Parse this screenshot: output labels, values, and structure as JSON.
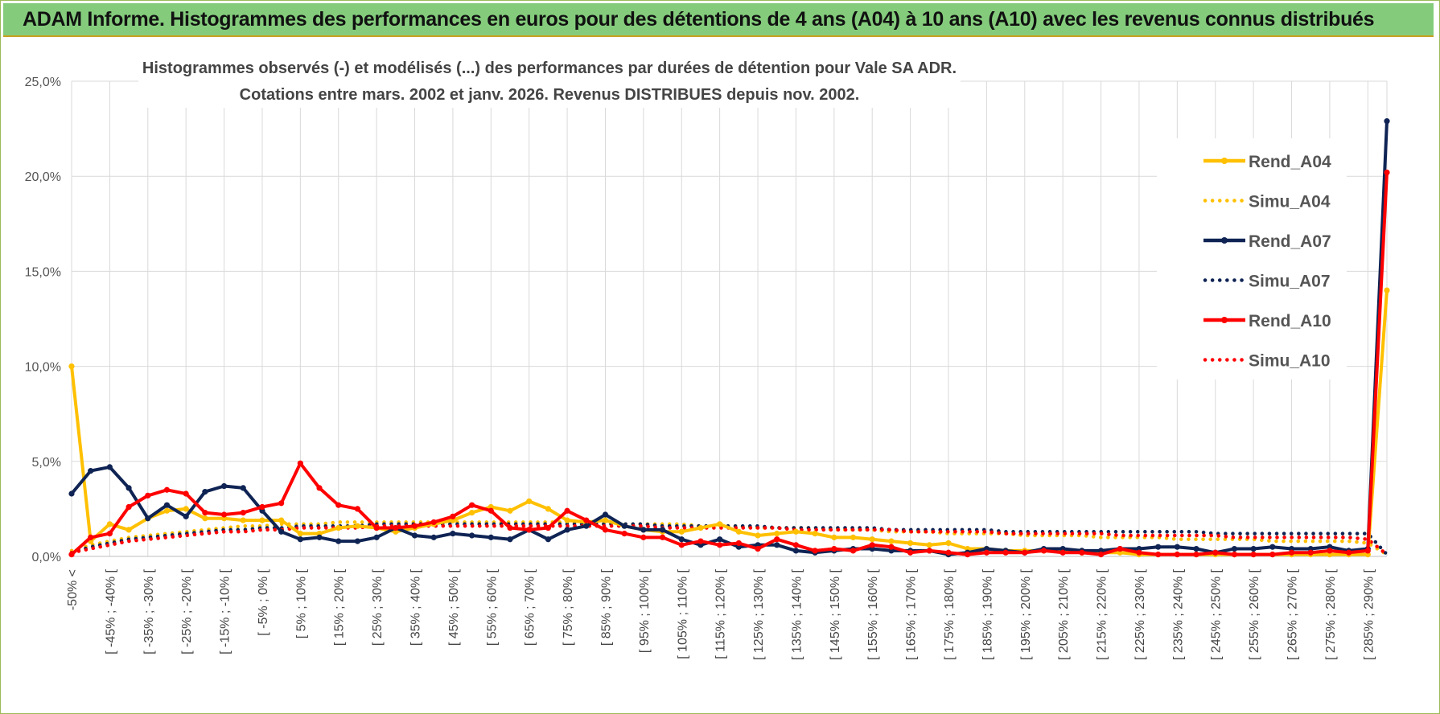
{
  "banner": {
    "title": "ADAM Informe. Histogrammes des performances en euros pour des détentions de 4 ans (A04) à 10 ans (A10) avec les revenus connus distribués"
  },
  "colors": {
    "A04": "#ffc000",
    "A07": "#0f2454",
    "A10": "#ff0000",
    "banner": "#84cc7c",
    "grid": "#d9d9d9"
  },
  "chart_data": {
    "type": "line",
    "title_lines": [
      "Histogrammes observés (-) et modélisés (...) des performances par durées de détention pour Vale SA ADR.",
      "Cotations entre mars. 2002 et janv. 2026.  Revenus DISTRIBUES depuis nov. 2002."
    ],
    "ylim": [
      0,
      25
    ],
    "yticks": [
      {
        "v": 0,
        "label": "0,0%"
      },
      {
        "v": 5,
        "label": "5,0%"
      },
      {
        "v": 10,
        "label": "10,0%"
      },
      {
        "v": 15,
        "label": "15,0%"
      },
      {
        "v": 20,
        "label": "20,0%"
      },
      {
        "v": 25,
        "label": "25,0%"
      }
    ],
    "x_count": 70,
    "x_tick_labels": [
      {
        "i": 0,
        "label": "-50% <"
      },
      {
        "i": 2,
        "label": "[ -45% ; -40% ["
      },
      {
        "i": 4,
        "label": "[ -35% ; -30% ["
      },
      {
        "i": 6,
        "label": "[ -25% ; -20% ["
      },
      {
        "i": 8,
        "label": "[ -15% ; -10% ["
      },
      {
        "i": 10,
        "label": "[ -5% ; 0% ["
      },
      {
        "i": 12,
        "label": "[ 5% ; 10% ["
      },
      {
        "i": 14,
        "label": "[ 15% ; 20% ["
      },
      {
        "i": 16,
        "label": "[ 25% ; 30% ["
      },
      {
        "i": 18,
        "label": "[ 35% ; 40% ["
      },
      {
        "i": 20,
        "label": "[ 45% ; 50% ["
      },
      {
        "i": 22,
        "label": "[ 55% ; 60% ["
      },
      {
        "i": 24,
        "label": "[ 65% ; 70% ["
      },
      {
        "i": 26,
        "label": "[ 75% ; 80% ["
      },
      {
        "i": 28,
        "label": "[ 85% ; 90% ["
      },
      {
        "i": 30,
        "label": "[ 95% ; 100% ["
      },
      {
        "i": 32,
        "label": "[ 105% ; 110% ["
      },
      {
        "i": 34,
        "label": "[ 115% ; 120% ["
      },
      {
        "i": 36,
        "label": "[ 125% ; 130% ["
      },
      {
        "i": 38,
        "label": "[ 135% ; 140% ["
      },
      {
        "i": 40,
        "label": "[ 145% ; 150% ["
      },
      {
        "i": 42,
        "label": "[ 155% ; 160% ["
      },
      {
        "i": 44,
        "label": "[ 165% ; 170% ["
      },
      {
        "i": 46,
        "label": "[ 175% ; 180% ["
      },
      {
        "i": 48,
        "label": "[ 185% ; 190% ["
      },
      {
        "i": 50,
        "label": "[ 195% ; 200% ["
      },
      {
        "i": 52,
        "label": "[ 205% ; 210% ["
      },
      {
        "i": 54,
        "label": "[ 215% ; 220% ["
      },
      {
        "i": 56,
        "label": "[ 225% ; 230% ["
      },
      {
        "i": 58,
        "label": "[ 235% ; 240% ["
      },
      {
        "i": 60,
        "label": "[ 245% ; 250% ["
      },
      {
        "i": 62,
        "label": "[ 255% ; 260% ["
      },
      {
        "i": 64,
        "label": "[ 265% ; 270% ["
      },
      {
        "i": 66,
        "label": "[ 275% ; 280% ["
      },
      {
        "i": 68,
        "label": "[ 285% ; 290% ["
      }
    ],
    "legend_position": "right",
    "series": [
      {
        "name": "Rend_A04",
        "style": "solid",
        "color": "#ffc000",
        "values": [
          10.0,
          0.8,
          1.7,
          1.4,
          2.0,
          2.4,
          2.5,
          2.0,
          2.0,
          1.9,
          1.9,
          1.9,
          1.2,
          1.2,
          1.5,
          1.6,
          1.5,
          1.3,
          1.5,
          1.7,
          1.9,
          2.3,
          2.6,
          2.4,
          2.9,
          2.5,
          1.9,
          1.8,
          1.9,
          1.6,
          1.4,
          1.3,
          1.3,
          1.5,
          1.7,
          1.3,
          1.1,
          1.2,
          1.3,
          1.2,
          1.0,
          1.0,
          0.9,
          0.8,
          0.7,
          0.6,
          0.7,
          0.4,
          0.4,
          0.3,
          0.3,
          0.3,
          0.3,
          0.2,
          0.2,
          0.2,
          0.1,
          0.1,
          0.1,
          0.1,
          0.1,
          0.1,
          0.1,
          0.1,
          0.1,
          0.1,
          0.1,
          0.1,
          0.1,
          14.0
        ]
      },
      {
        "name": "Simu_A04",
        "style": "dotted",
        "color": "#ffc000",
        "values": [
          0.3,
          0.6,
          0.8,
          1.0,
          1.1,
          1.2,
          1.3,
          1.4,
          1.5,
          1.6,
          1.6,
          1.7,
          1.7,
          1.7,
          1.8,
          1.8,
          1.8,
          1.8,
          1.8,
          1.8,
          1.8,
          1.8,
          1.8,
          1.8,
          1.8,
          1.8,
          1.8,
          1.8,
          1.7,
          1.7,
          1.7,
          1.7,
          1.7,
          1.6,
          1.6,
          1.6,
          1.5,
          1.5,
          1.5,
          1.5,
          1.4,
          1.4,
          1.4,
          1.3,
          1.3,
          1.3,
          1.2,
          1.2,
          1.2,
          1.2,
          1.1,
          1.1,
          1.1,
          1.1,
          1.0,
          1.0,
          1.0,
          1.0,
          0.9,
          0.9,
          0.9,
          0.9,
          0.9,
          0.8,
          0.8,
          0.8,
          0.8,
          0.8,
          0.7,
          0.1
        ]
      },
      {
        "name": "Rend_A07",
        "style": "solid",
        "color": "#0f2454",
        "values": [
          3.3,
          4.5,
          4.7,
          3.6,
          2.0,
          2.7,
          2.1,
          3.4,
          3.7,
          3.6,
          2.4,
          1.3,
          0.9,
          1.0,
          0.8,
          0.8,
          1.0,
          1.5,
          1.1,
          1.0,
          1.2,
          1.1,
          1.0,
          0.9,
          1.4,
          0.9,
          1.4,
          1.6,
          2.2,
          1.6,
          1.4,
          1.4,
          0.9,
          0.6,
          0.9,
          0.5,
          0.6,
          0.6,
          0.3,
          0.2,
          0.3,
          0.4,
          0.4,
          0.3,
          0.3,
          0.3,
          0.1,
          0.2,
          0.4,
          0.3,
          0.2,
          0.4,
          0.4,
          0.3,
          0.3,
          0.4,
          0.4,
          0.5,
          0.5,
          0.4,
          0.2,
          0.4,
          0.4,
          0.5,
          0.4,
          0.4,
          0.5,
          0.3,
          0.4,
          22.9
        ]
      },
      {
        "name": "Simu_A07",
        "style": "dotted",
        "color": "#0f2454",
        "values": [
          0.2,
          0.5,
          0.7,
          0.9,
          1.0,
          1.1,
          1.2,
          1.3,
          1.4,
          1.4,
          1.5,
          1.5,
          1.6,
          1.6,
          1.6,
          1.6,
          1.7,
          1.7,
          1.7,
          1.7,
          1.7,
          1.7,
          1.7,
          1.7,
          1.7,
          1.7,
          1.7,
          1.7,
          1.7,
          1.7,
          1.7,
          1.6,
          1.6,
          1.6,
          1.6,
          1.6,
          1.6,
          1.5,
          1.5,
          1.5,
          1.5,
          1.5,
          1.5,
          1.4,
          1.4,
          1.4,
          1.4,
          1.4,
          1.4,
          1.3,
          1.3,
          1.3,
          1.3,
          1.3,
          1.3,
          1.3,
          1.3,
          1.3,
          1.3,
          1.3,
          1.2,
          1.2,
          1.2,
          1.2,
          1.2,
          1.2,
          1.2,
          1.2,
          1.2,
          0.1
        ]
      },
      {
        "name": "Rend_A10",
        "style": "solid",
        "color": "#ff0000",
        "values": [
          0.1,
          1.0,
          1.2,
          2.6,
          3.2,
          3.5,
          3.3,
          2.3,
          2.2,
          2.3,
          2.6,
          2.8,
          4.9,
          3.6,
          2.7,
          2.5,
          1.5,
          1.5,
          1.6,
          1.8,
          2.1,
          2.7,
          2.4,
          1.5,
          1.4,
          1.5,
          2.4,
          1.9,
          1.4,
          1.2,
          1.0,
          1.0,
          0.6,
          0.8,
          0.6,
          0.7,
          0.4,
          0.9,
          0.6,
          0.3,
          0.4,
          0.3,
          0.6,
          0.5,
          0.2,
          0.3,
          0.2,
          0.1,
          0.2,
          0.2,
          0.2,
          0.3,
          0.2,
          0.2,
          0.1,
          0.4,
          0.2,
          0.1,
          0.1,
          0.1,
          0.2,
          0.1,
          0.1,
          0.1,
          0.2,
          0.2,
          0.3,
          0.2,
          0.3,
          20.2
        ]
      },
      {
        "name": "Simu_A10",
        "style": "dotted",
        "color": "#ff0000",
        "values": [
          0.2,
          0.4,
          0.6,
          0.8,
          0.9,
          1.0,
          1.1,
          1.2,
          1.3,
          1.3,
          1.4,
          1.4,
          1.5,
          1.5,
          1.5,
          1.5,
          1.6,
          1.6,
          1.6,
          1.6,
          1.6,
          1.6,
          1.6,
          1.6,
          1.6,
          1.6,
          1.6,
          1.6,
          1.6,
          1.6,
          1.6,
          1.5,
          1.5,
          1.5,
          1.5,
          1.5,
          1.5,
          1.5,
          1.4,
          1.4,
          1.4,
          1.4,
          1.4,
          1.4,
          1.3,
          1.3,
          1.3,
          1.3,
          1.3,
          1.2,
          1.2,
          1.2,
          1.2,
          1.2,
          1.2,
          1.1,
          1.1,
          1.1,
          1.1,
          1.1,
          1.1,
          1.0,
          1.0,
          1.0,
          1.0,
          1.0,
          1.0,
          1.0,
          0.9,
          0.1
        ]
      }
    ]
  }
}
